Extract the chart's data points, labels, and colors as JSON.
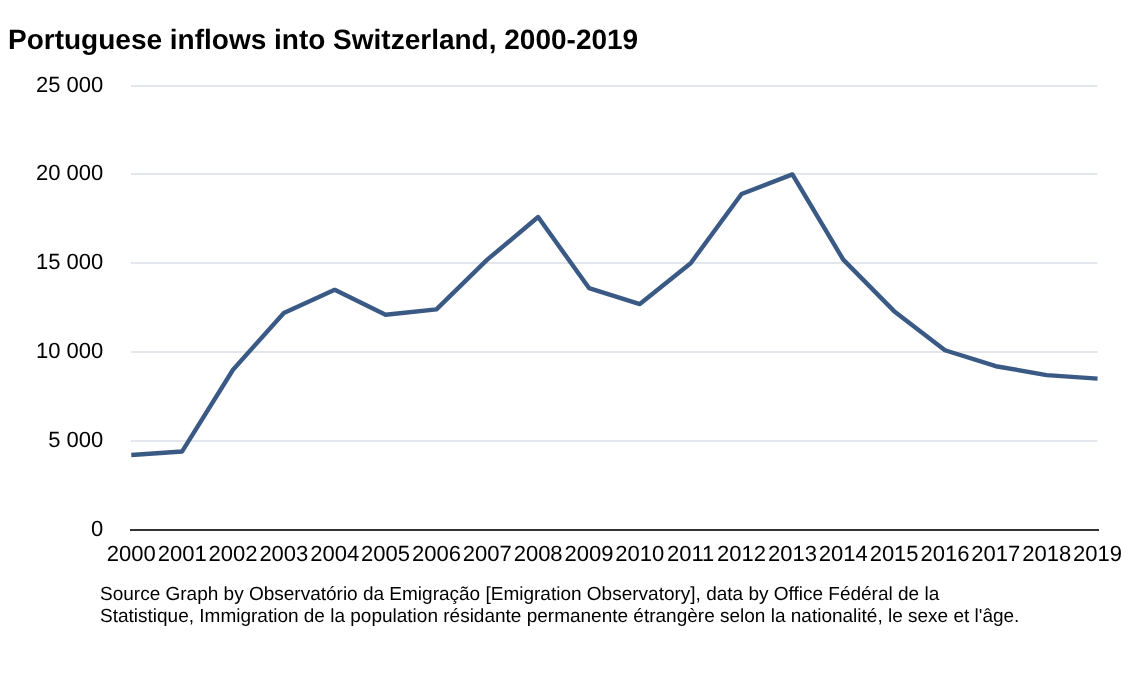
{
  "chart_data": {
    "type": "line",
    "title": "Portuguese inflows into Switzerland, 2000-2019",
    "categories": [
      "2000",
      "2001",
      "2002",
      "2003",
      "2004",
      "2005",
      "2006",
      "2007",
      "2008",
      "2009",
      "2010",
      "2011",
      "2012",
      "2013",
      "2014",
      "2015",
      "2016",
      "2017",
      "2018",
      "2019"
    ],
    "series": [
      {
        "color": "#3a5a85",
        "values": [
          4200,
          4400,
          9000,
          12200,
          13500,
          12100,
          12400,
          15200,
          17600,
          13600,
          12700,
          15000,
          18900,
          20000,
          15200,
          12300,
          10100,
          9200,
          8700,
          8500
        ]
      }
    ],
    "ylim": [
      0,
      25000
    ],
    "yticks": [
      0,
      {
        "value": 5000,
        "label": "5 000"
      },
      {
        "value": 10000,
        "label": "10 000"
      },
      {
        "value": 15000,
        "label": "15 000"
      },
      {
        "value": 20000,
        "label": "20 000"
      },
      {
        "value": 25000,
        "label": "25 000"
      }
    ],
    "grid": "y",
    "legend": false,
    "marker": "none",
    "line_style": "solid",
    "annotations": [
      "Source  Graph by Observatório da Emigração [Emigration Observatory], data by Office Fédéral de la Statistique, Immigration de la population résidante permanente étrangère selon la nationalité, le sexe et l'âge."
    ]
  }
}
